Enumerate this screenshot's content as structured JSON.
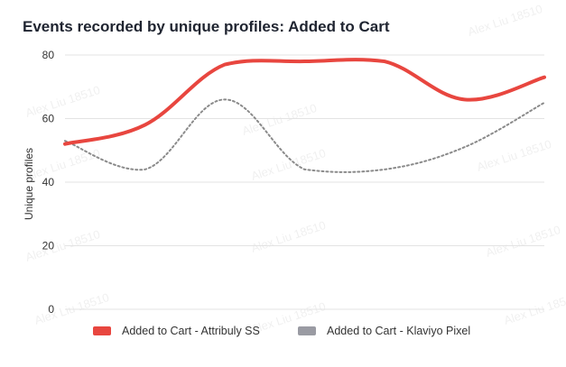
{
  "chart_data": {
    "type": "line",
    "title": "Events recorded by unique profiles: Added to Cart",
    "xlabel": "",
    "ylabel": "Unique profiles",
    "ylim": [
      0,
      80
    ],
    "yticks": [
      0,
      20,
      40,
      60,
      80
    ],
    "grid": true,
    "legend_position": "bottom",
    "x": [
      1,
      2,
      3,
      4,
      5,
      6,
      7
    ],
    "series": [
      {
        "name": "Added to Cart - Attribuly SS",
        "values": [
          52,
          58,
          77,
          78,
          78,
          66,
          73
        ],
        "color": "#e8463f",
        "style": "solid"
      },
      {
        "name": "Added to Cart - Klaviyo Pixel",
        "values": [
          53,
          44,
          66,
          44,
          44,
          51,
          65
        ],
        "color": "#8a8a8a",
        "style": "dotted"
      }
    ]
  },
  "watermark_text": "Alex Liu 18510"
}
